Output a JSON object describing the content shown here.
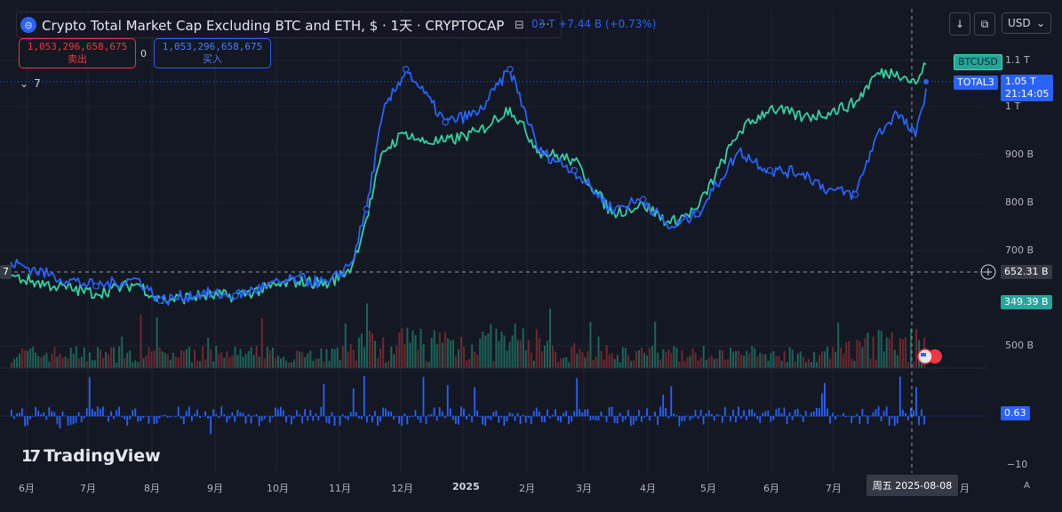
{
  "header": {
    "title": "Crypto Total Market Cap Excluding BTC and ETH, $ · 1天 · CRYPTOCAP",
    "price_partial": "03 T",
    "change_text": "+7.44 B (+0.73%)"
  },
  "trade": {
    "sell_price": "1,053,296,658,675",
    "sell_label": "卖出",
    "spread": "0",
    "buy_price": "1,053,296,658,675",
    "buy_label": "买入"
  },
  "indicators": {
    "collapsed_count": "7"
  },
  "toolbar": {
    "currency": "USD"
  },
  "right_axis": {
    "labels": [
      "1.1 T",
      "1 T",
      "900 B",
      "800 B",
      "700 B",
      "500 B"
    ],
    "btcusd_tag": "BTCUSD",
    "total3_tag": "TOTAL3",
    "total3_value": "1.05 T",
    "countdown": "21:14:05",
    "crosshair_value": "652.31 B",
    "volume_value": "349.39 B",
    "oscillator_value": "0.63",
    "oscillator_min": "−10"
  },
  "left_axis": {
    "crosshair_partial": "7"
  },
  "time_axis": {
    "months": [
      "6月",
      "7月",
      "8月",
      "9月",
      "10月",
      "11月",
      "12月",
      "2025",
      "2月",
      "3月",
      "4月",
      "5月",
      "6月",
      "7月"
    ],
    "trailing": "月",
    "crosshair_date": "周五 2025-08-08",
    "scale_button": "A"
  },
  "branding": {
    "logo_text": "TradingView"
  },
  "colors": {
    "background": "#141823",
    "total3_line": "#2962ff",
    "btcusd_line": "#36d1a0",
    "up_volume": "#1e6e5e",
    "down_volume": "#7a2a31",
    "sell": "#f23645",
    "buy": "#2962ff"
  },
  "chart_data": {
    "type": "line",
    "title": "Crypto Total Market Cap Excluding BTC and ETH",
    "x": [
      "2024-05-25",
      "2024-06-15",
      "2024-07-05",
      "2024-07-25",
      "2024-08-05",
      "2024-08-25",
      "2024-09-10",
      "2024-09-25",
      "2024-10-10",
      "2024-10-25",
      "2024-11-05",
      "2024-11-12",
      "2024-11-20",
      "2024-12-01",
      "2024-12-08",
      "2024-12-20",
      "2025-01-05",
      "2025-01-20",
      "2025-02-03",
      "2025-02-20",
      "2025-03-10",
      "2025-03-25",
      "2025-04-07",
      "2025-04-20",
      "2025-05-10",
      "2025-05-25",
      "2025-06-10",
      "2025-06-22",
      "2025-07-05",
      "2025-07-15",
      "2025-07-25",
      "2025-08-03",
      "2025-08-08"
    ],
    "series": [
      {
        "name": "TOTAL3",
        "values": [
          690,
          660,
          640,
          655,
          610,
          625,
          620,
          640,
          655,
          645,
          690,
          800,
          1000,
          1090,
          1050,
          980,
          1000,
          1090,
          920,
          880,
          800,
          820,
          760,
          790,
          920,
          880,
          875,
          840,
          830,
          950,
          1000,
          950,
          1050
        ]
      },
      {
        "name": "BTCUSD",
        "values": [
          660,
          640,
          625,
          645,
          610,
          620,
          620,
          635,
          650,
          645,
          680,
          780,
          920,
          960,
          940,
          940,
          960,
          1010,
          920,
          900,
          790,
          810,
          770,
          800,
          960,
          1010,
          990,
          1000,
          1020,
          1080,
          1085,
          1060,
          1100
        ]
      }
    ],
    "ylim": [
      470,
      1160
    ],
    "ylabel": ""
  }
}
